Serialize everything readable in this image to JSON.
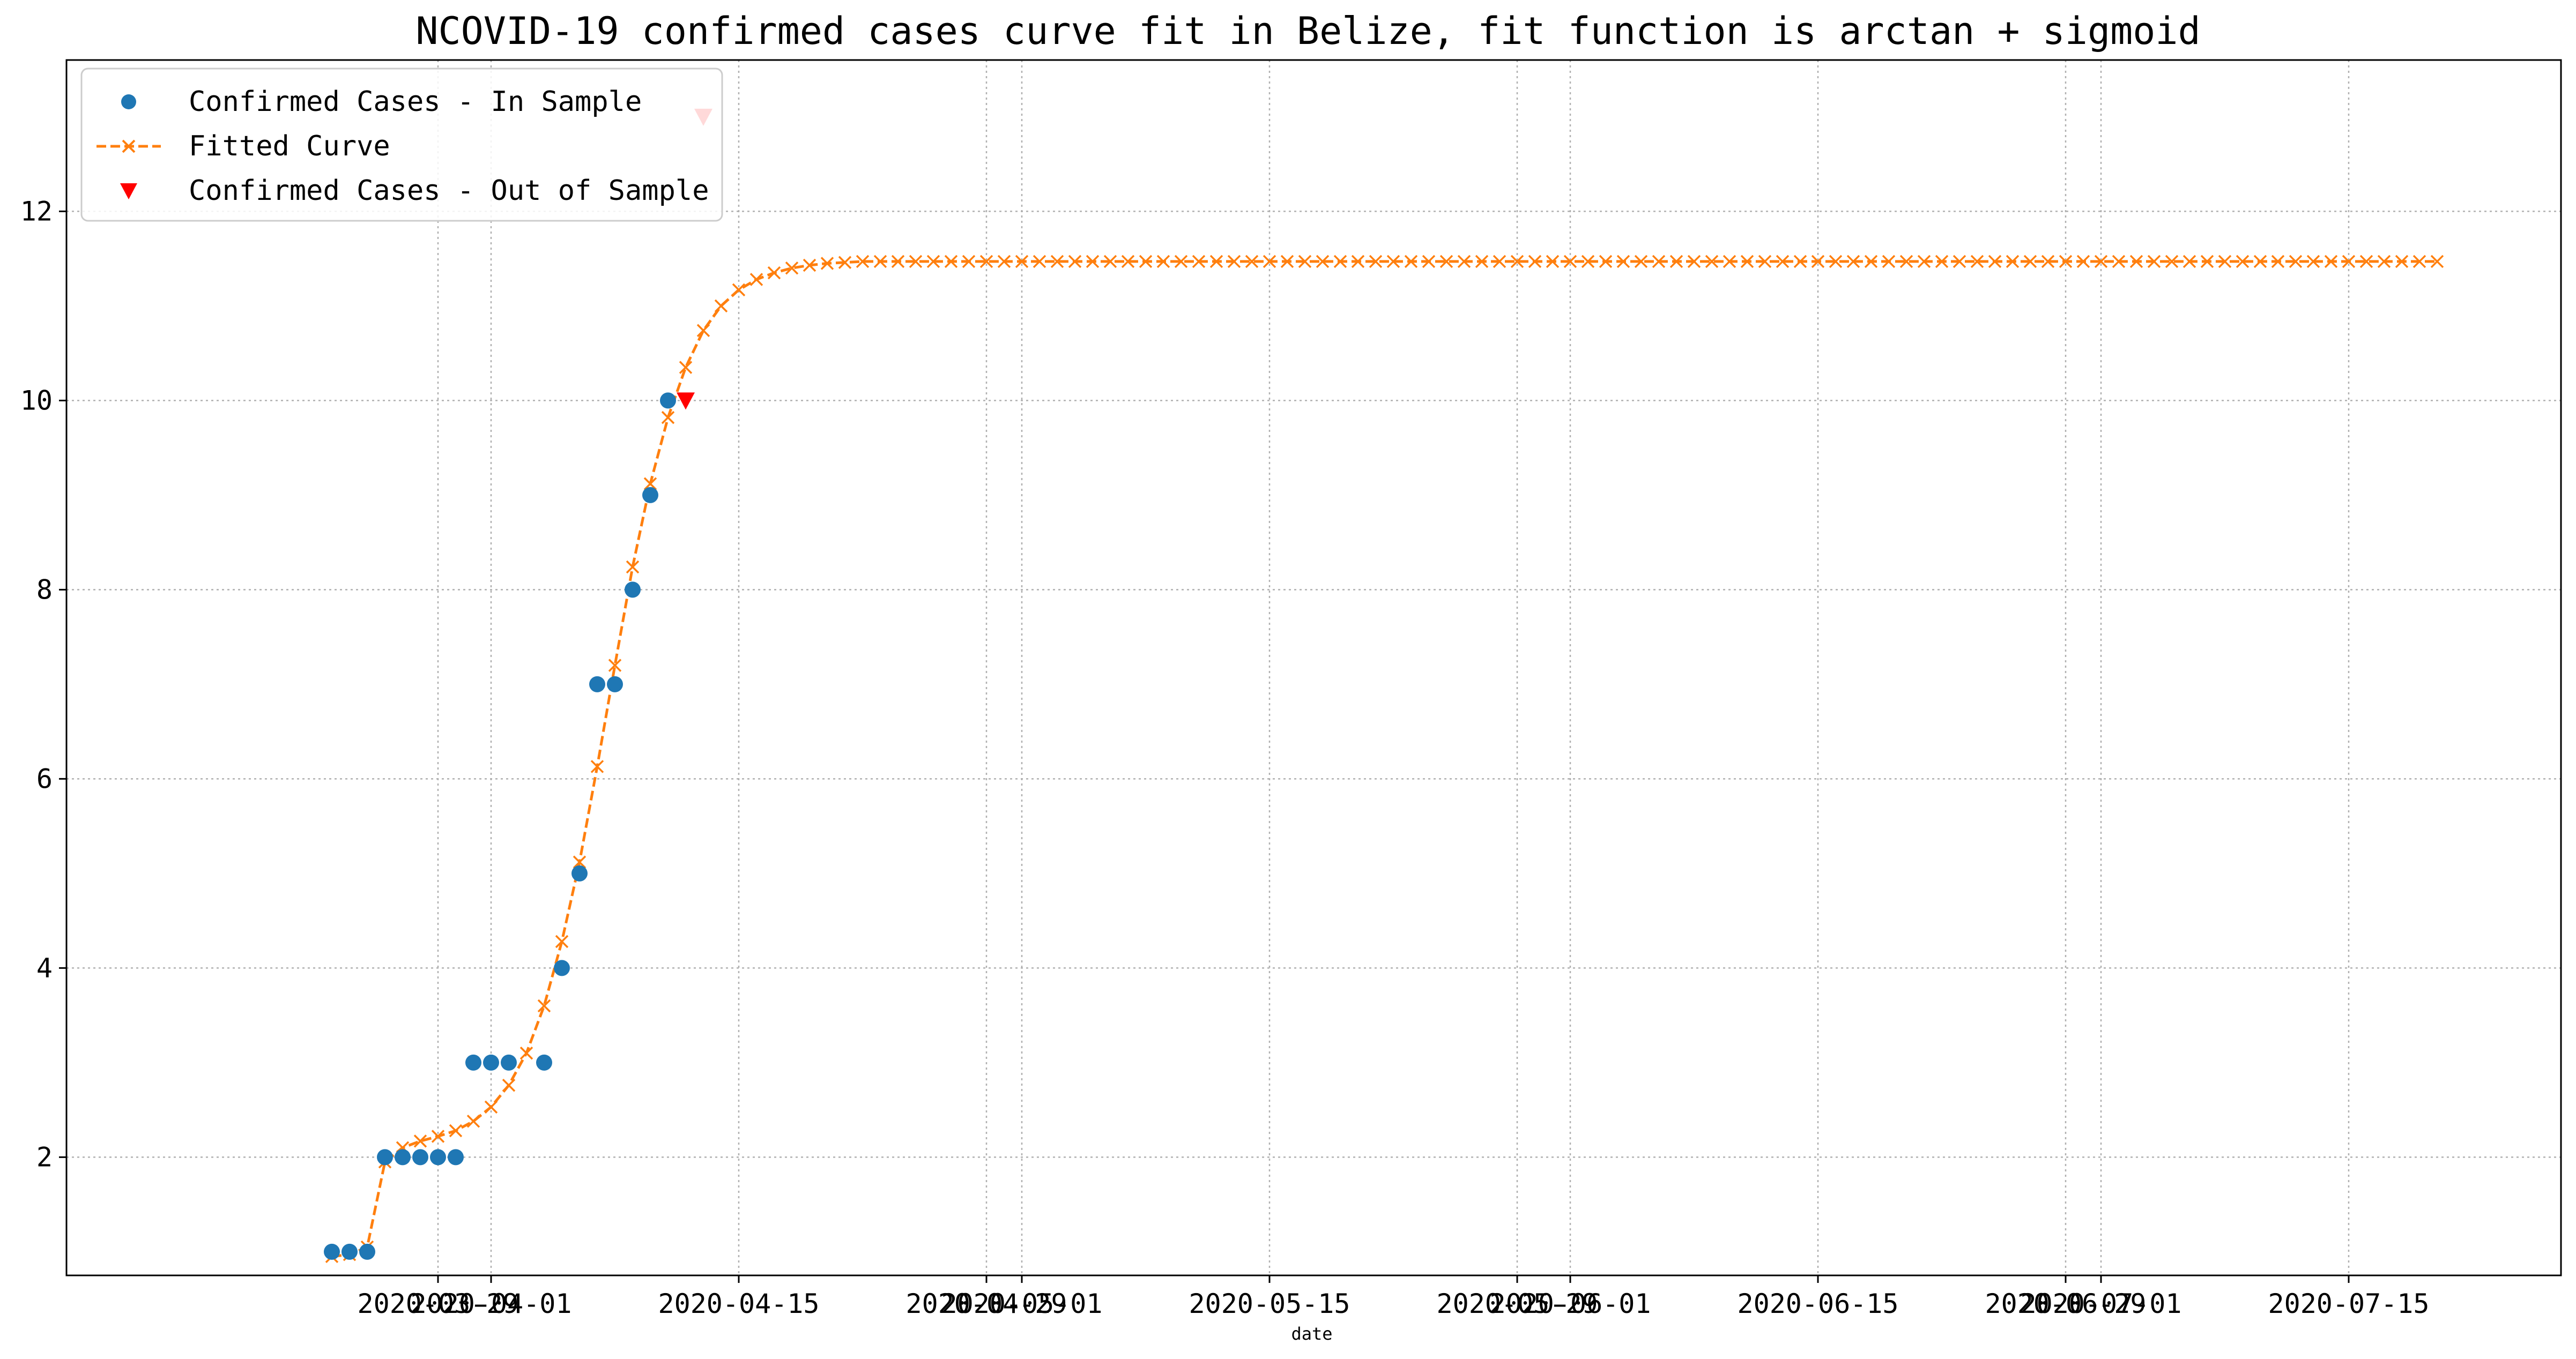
{
  "chart_data": {
    "type": "line",
    "title": "NCOVID-19 confirmed cases curve fit in Belize, fit function is arctan + sigmoid",
    "xlabel": "date",
    "ylabel": "",
    "x_type": "date",
    "xlim": [
      "2020-03-08",
      "2020-07-27"
    ],
    "ylim": [
      0.75,
      13.6
    ],
    "x_ticks": [
      "2020-03-29",
      "2020-04-01",
      "2020-04-15",
      "2020-04-29",
      "2020-05-01",
      "2020-05-15",
      "2020-05-29",
      "2020-06-01",
      "2020-06-15",
      "2020-06-29",
      "2020-07-01",
      "2020-07-15"
    ],
    "x_tick_labels": [
      "2020-03-29",
      "2020-04-01",
      "2020-04-15",
      "2020-04-29",
      "2020-05-01",
      "2020-05-15",
      "2020-05-29",
      "2020-06-01",
      "2020-06-15",
      "2020-06-29",
      "2020-07-01",
      "2020-07-15"
    ],
    "y_ticks": [
      2,
      4,
      6,
      8,
      10,
      12
    ],
    "grid": true,
    "legend_position": "top-left",
    "colors": {
      "in_sample": "#1f77b4",
      "fitted": "#ff7f0e",
      "out_of_sample": "#ff0000"
    },
    "series": [
      {
        "name": "Confirmed Cases - In Sample",
        "style": "markers-circle",
        "points": [
          [
            "2020-03-23",
            1
          ],
          [
            "2020-03-24",
            1
          ],
          [
            "2020-03-25",
            1
          ],
          [
            "2020-03-26",
            2
          ],
          [
            "2020-03-27",
            2
          ],
          [
            "2020-03-28",
            2
          ],
          [
            "2020-03-29",
            2
          ],
          [
            "2020-03-30",
            2
          ],
          [
            "2020-03-31",
            3
          ],
          [
            "2020-04-01",
            3
          ],
          [
            "2020-04-02",
            3
          ],
          [
            "2020-04-04",
            3
          ],
          [
            "2020-04-05",
            4
          ],
          [
            "2020-04-06",
            5
          ],
          [
            "2020-04-07",
            7
          ],
          [
            "2020-04-08",
            7
          ],
          [
            "2020-04-09",
            8
          ],
          [
            "2020-04-10",
            9
          ],
          [
            "2020-04-11",
            10
          ]
        ]
      },
      {
        "name": "Fitted Curve",
        "style": "dashed-line-x-markers",
        "x_start": "2020-03-23",
        "values": [
          0.95,
          0.97,
          1.05,
          1.95,
          2.1,
          2.17,
          2.22,
          2.28,
          2.38,
          2.53,
          2.76,
          3.1,
          3.6,
          4.28,
          5.12,
          6.13,
          7.2,
          8.24,
          9.12,
          9.82,
          10.35,
          10.74,
          11.0,
          11.17,
          11.28,
          11.35,
          11.4,
          11.43,
          11.45,
          11.46,
          11.47,
          11.47,
          11.47,
          11.47,
          11.47,
          11.47,
          11.47,
          11.47,
          11.47,
          11.47,
          11.47,
          11.47,
          11.47,
          11.47,
          11.47,
          11.47,
          11.47,
          11.47,
          11.47,
          11.47,
          11.47,
          11.47,
          11.47,
          11.47,
          11.47,
          11.47,
          11.47,
          11.47,
          11.47,
          11.47,
          11.47,
          11.47,
          11.47,
          11.47,
          11.47,
          11.47,
          11.47,
          11.47,
          11.47,
          11.47,
          11.47,
          11.47,
          11.47,
          11.47,
          11.47,
          11.47,
          11.47,
          11.47,
          11.47,
          11.47,
          11.47,
          11.47,
          11.47,
          11.47,
          11.47,
          11.47,
          11.47,
          11.47,
          11.47,
          11.47,
          11.47,
          11.47,
          11.47,
          11.47,
          11.47,
          11.47,
          11.47,
          11.47,
          11.47,
          11.47,
          11.47,
          11.47,
          11.47,
          11.47,
          11.47,
          11.47,
          11.47,
          11.47,
          11.47,
          11.47,
          11.47,
          11.47,
          11.47,
          11.47,
          11.47,
          11.47,
          11.47,
          11.47,
          11.47,
          11.47
        ]
      },
      {
        "name": "Confirmed Cases - Out of Sample",
        "style": "markers-triangle-down",
        "points": [
          [
            "2020-04-12",
            10
          ],
          [
            "2020-04-13",
            13
          ]
        ]
      }
    ]
  }
}
